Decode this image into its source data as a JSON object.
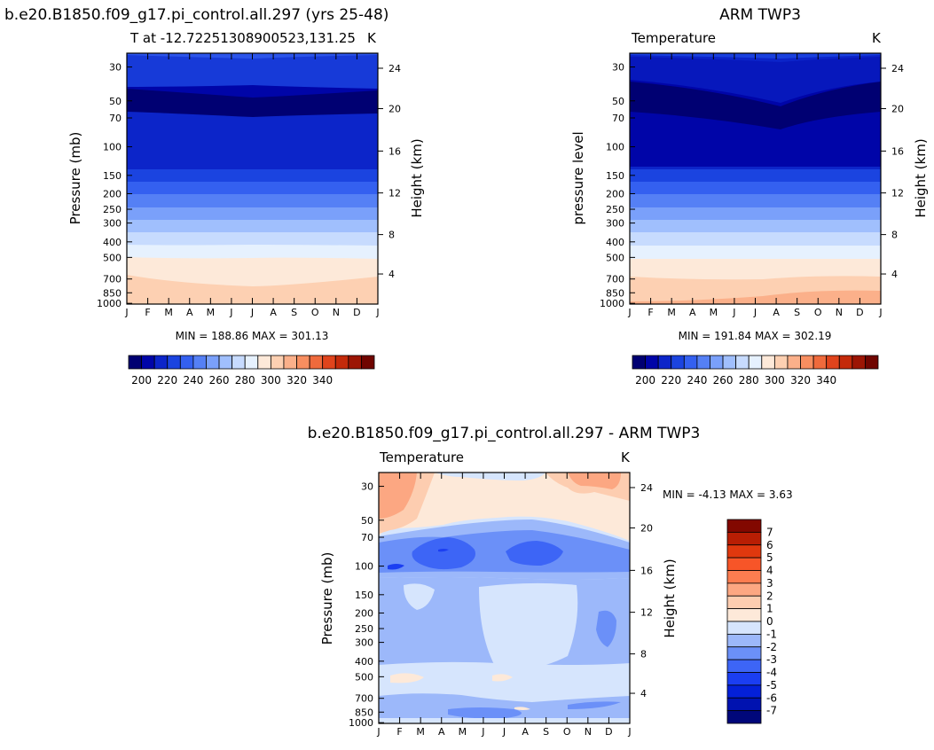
{
  "colors": {
    "levels": [
      "#000072",
      "#0005a8",
      "#0c25c9",
      "#1b44e0",
      "#3460f0",
      "#5580f5",
      "#7aa0fa",
      "#a0bffd",
      "#c7dbfe",
      "#e6f1fe",
      "#fde9d9",
      "#fdd0b2",
      "#fbb08a",
      "#f78e60",
      "#ef6a3c",
      "#e0441c",
      "#c42a0a",
      "#9c1504",
      "#700500"
    ],
    "diff_levels": [
      "#00077a",
      "#0012b0",
      "#0420d8",
      "#1b3ef2",
      "#3d65f6",
      "#6b90f8",
      "#9cb8fa",
      "#d6e5fd",
      "#fde9d9",
      "#fdcdb0",
      "#fca782",
      "#fc7d50",
      "#f75528",
      "#e0380e",
      "#b81e04",
      "#820800"
    ],
    "diff_level_labels_note": "levels -7..7"
  },
  "chart_data": [
    {
      "type": "heatmap",
      "title": "b.e20.B1850.f09_g17.pi_control.all.297 (yrs 25-48)",
      "subtitle": "T at -12.72251308900523,131.25",
      "corner_label": "K",
      "ylabel": "Pressure (mb)",
      "y2label": "Height (km)",
      "months": [
        "J",
        "F",
        "M",
        "A",
        "M",
        "J",
        "J",
        "A",
        "S",
        "O",
        "N",
        "D",
        "J"
      ],
      "pressure_ticks": [
        "30",
        "50",
        "70",
        "100",
        "150",
        "200",
        "250",
        "300",
        "400",
        "500",
        "700",
        "850",
        "1000"
      ],
      "height_ticks": [
        "24",
        "20",
        "16",
        "12",
        "8",
        "4"
      ],
      "min_max_text": "MIN = 188.86 MAX = 301.13",
      "colorbar_labels": [
        "200",
        "220",
        "240",
        "260",
        "280",
        "300",
        "320",
        "340"
      ]
    },
    {
      "type": "heatmap",
      "title": "ARM TWP3",
      "subtitle": "Temperature",
      "corner_label": "K",
      "ylabel": "pressure level",
      "y2label": "Height (km)",
      "months": [
        "J",
        "F",
        "M",
        "A",
        "M",
        "J",
        "J",
        "A",
        "S",
        "O",
        "N",
        "D",
        "J"
      ],
      "pressure_ticks": [
        "30",
        "50",
        "70",
        "100",
        "150",
        "200",
        "250",
        "300",
        "400",
        "500",
        "700",
        "850",
        "1000"
      ],
      "height_ticks": [
        "24",
        "20",
        "16",
        "12",
        "8",
        "4"
      ],
      "min_max_text": "MIN = 191.84 MAX = 302.19",
      "colorbar_labels": [
        "200",
        "220",
        "240",
        "260",
        "280",
        "300",
        "320",
        "340"
      ]
    },
    {
      "type": "heatmap",
      "title": "b.e20.B1850.f09_g17.pi_control.all.297 - ARM TWP3",
      "subtitle": "Temperature",
      "corner_label": "K",
      "ylabel": "Pressure (mb)",
      "y2label": "Height (km)",
      "months": [
        "J",
        "F",
        "M",
        "A",
        "M",
        "J",
        "J",
        "A",
        "S",
        "O",
        "N",
        "D",
        "J"
      ],
      "pressure_ticks": [
        "30",
        "50",
        "70",
        "100",
        "150",
        "200",
        "250",
        "300",
        "400",
        "500",
        "700",
        "850",
        "1000"
      ],
      "height_ticks": [
        "24",
        "20",
        "16",
        "12",
        "8",
        "4"
      ],
      "min_max_text": "MIN =   -4.13 MAX =    3.63",
      "colorbar_labels": [
        "7",
        "6",
        "5",
        "4",
        "3",
        "2",
        "1",
        "0",
        "-1",
        "-2",
        "-3",
        "-4",
        "-5",
        "-6",
        "-7"
      ]
    }
  ]
}
